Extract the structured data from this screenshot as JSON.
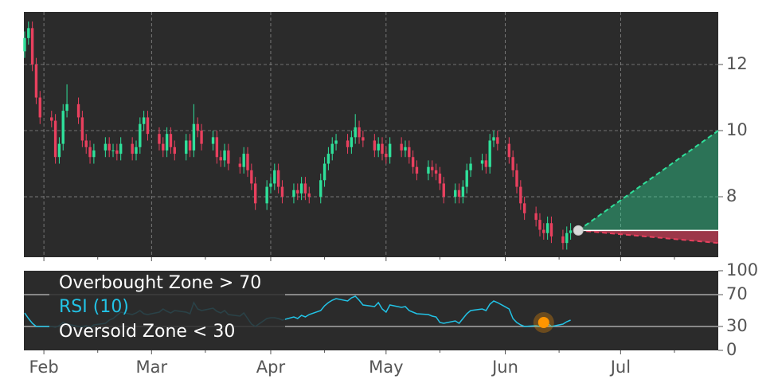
{
  "chart_data": [
    {
      "type": "candlestick",
      "up_color": "#2fe09a",
      "down_color": "#e8405e",
      "background": "#2b2b2b",
      "grid": true,
      "xlim": [
        26.8,
        207.4
      ],
      "ylim": [
        6.17,
        13.59
      ],
      "yticks": [
        8,
        10,
        12
      ],
      "x": [
        27,
        28,
        29,
        30,
        31,
        34,
        35,
        36,
        37,
        38,
        41,
        42,
        43,
        44,
        45,
        48,
        49,
        50,
        51,
        52,
        55,
        56,
        57,
        58,
        59,
        62,
        63,
        64,
        65,
        66,
        69,
        70,
        71,
        72,
        73,
        76,
        77,
        78,
        79,
        80,
        83,
        84,
        85,
        86,
        87,
        90,
        91,
        92,
        93,
        94,
        97,
        98,
        99,
        100,
        101,
        104,
        105,
        106,
        107,
        108,
        111,
        112,
        113,
        114,
        115,
        118,
        119,
        120,
        121,
        122,
        125,
        126,
        127,
        128,
        129,
        132,
        133,
        134,
        135,
        136,
        139,
        140,
        141,
        142,
        143,
        146,
        147,
        148,
        149,
        150,
        153,
        154,
        155,
        156,
        157,
        160,
        161,
        162,
        163,
        164,
        167,
        168,
        169
      ],
      "open": [
        12.4,
        12.8,
        13.1,
        12.0,
        11.0,
        10.4,
        10.3,
        9.2,
        9.6,
        10.6,
        10.8,
        10.4,
        9.7,
        9.5,
        9.2,
        9.4,
        9.6,
        9.4,
        9.4,
        9.3,
        9.6,
        9.3,
        9.5,
        10.2,
        10.4,
        9.9,
        9.6,
        9.4,
        9.9,
        9.5,
        9.3,
        9.7,
        9.4,
        10.2,
        10.0,
        9.6,
        9.8,
        9.2,
        9.1,
        9.4,
        9.0,
        8.9,
        9.3,
        8.8,
        8.4,
        7.8,
        8.3,
        8.4,
        8.8,
        8.3,
        8.0,
        8.2,
        8.1,
        8.4,
        8.1,
        8.0,
        8.5,
        9.0,
        9.3,
        9.6,
        9.7,
        9.5,
        9.8,
        10.1,
        9.8,
        9.7,
        9.4,
        9.6,
        9.3,
        9.2,
        9.6,
        9.4,
        9.5,
        9.2,
        8.9,
        8.7,
        8.9,
        8.8,
        8.7,
        8.4,
        8.0,
        8.2,
        8.0,
        8.3,
        8.8,
        9.0,
        9.1,
        8.9,
        9.7,
        9.8,
        9.6,
        9.2,
        8.8,
        8.3,
        7.8,
        7.5,
        7.3,
        7.0,
        6.9,
        7.2,
        6.8,
        6.6,
        6.9
      ],
      "high": [
        13.0,
        13.3,
        13.3,
        12.2,
        11.2,
        10.6,
        10.5,
        9.8,
        10.8,
        11.4,
        11.0,
        10.6,
        9.9,
        9.7,
        9.6,
        9.8,
        9.8,
        9.6,
        9.6,
        9.8,
        9.8,
        9.7,
        10.4,
        10.6,
        10.6,
        10.1,
        9.8,
        10.1,
        10.1,
        9.7,
        9.9,
        9.9,
        10.8,
        10.4,
        10.2,
        10.0,
        10.0,
        9.4,
        9.6,
        9.6,
        9.2,
        9.5,
        9.5,
        9.0,
        8.6,
        8.5,
        8.6,
        9.0,
        9.0,
        8.5,
        8.4,
        8.4,
        8.6,
        8.6,
        8.3,
        8.7,
        9.2,
        9.5,
        9.8,
        9.9,
        9.9,
        10.0,
        10.5,
        10.3,
        10.0,
        9.9,
        9.8,
        9.8,
        9.5,
        9.8,
        9.8,
        9.7,
        9.7,
        9.4,
        9.1,
        9.1,
        9.1,
        9.0,
        8.9,
        8.6,
        8.4,
        8.4,
        8.5,
        9.0,
        9.2,
        9.3,
        9.3,
        9.9,
        10.0,
        10.0,
        9.8,
        9.4,
        9.0,
        8.5,
        8.0,
        7.7,
        7.5,
        7.2,
        7.4,
        7.4,
        7.0,
        7.1,
        7.2
      ],
      "low": [
        12.2,
        12.6,
        11.8,
        10.8,
        10.2,
        10.1,
        9.0,
        9.0,
        9.4,
        10.4,
        10.2,
        9.5,
        9.3,
        9.0,
        9.0,
        9.2,
        9.2,
        9.2,
        9.1,
        9.1,
        9.1,
        9.1,
        9.3,
        10.0,
        9.7,
        9.4,
        9.2,
        9.2,
        9.3,
        9.1,
        9.1,
        9.2,
        9.2,
        9.8,
        9.4,
        9.4,
        9.0,
        8.9,
        8.9,
        8.8,
        8.7,
        8.7,
        8.6,
        8.2,
        7.6,
        7.6,
        8.1,
        8.2,
        8.1,
        7.8,
        7.8,
        7.9,
        7.9,
        7.9,
        7.8,
        7.8,
        8.3,
        8.8,
        9.1,
        9.4,
        9.3,
        9.3,
        9.6,
        9.6,
        9.5,
        9.2,
        9.2,
        9.1,
        9.0,
        9.0,
        9.2,
        9.2,
        9.0,
        8.7,
        8.5,
        8.5,
        8.6,
        8.5,
        8.2,
        7.8,
        7.8,
        7.8,
        7.8,
        8.1,
        8.6,
        8.8,
        8.7,
        8.7,
        9.5,
        9.4,
        9.0,
        8.6,
        8.1,
        7.6,
        7.3,
        7.1,
        6.8,
        6.7,
        6.7,
        6.6,
        6.4,
        6.4,
        6.7
      ],
      "close": [
        12.8,
        13.1,
        12.0,
        11.0,
        10.4,
        10.3,
        9.2,
        9.6,
        10.6,
        10.8,
        10.4,
        9.7,
        9.5,
        9.2,
        9.4,
        9.6,
        9.4,
        9.4,
        9.3,
        9.6,
        9.3,
        9.5,
        10.2,
        10.4,
        9.9,
        9.6,
        9.4,
        9.9,
        9.5,
        9.3,
        9.7,
        9.4,
        10.2,
        10.0,
        9.6,
        9.8,
        9.2,
        9.1,
        9.4,
        9.0,
        8.9,
        9.3,
        8.8,
        8.4,
        7.8,
        8.3,
        8.4,
        8.8,
        8.3,
        8.0,
        8.2,
        8.1,
        8.4,
        8.1,
        8.0,
        8.5,
        9.0,
        9.3,
        9.6,
        9.7,
        9.5,
        9.8,
        10.1,
        9.8,
        9.7,
        9.4,
        9.6,
        9.3,
        9.2,
        9.6,
        9.4,
        9.5,
        9.2,
        8.9,
        8.7,
        8.9,
        8.8,
        8.7,
        8.4,
        8.0,
        8.2,
        8.0,
        8.3,
        8.8,
        9.0,
        9.1,
        8.9,
        9.7,
        9.8,
        9.6,
        9.2,
        8.8,
        8.3,
        7.8,
        7.5,
        7.3,
        7.0,
        6.9,
        7.2,
        6.8,
        6.6,
        6.9,
        6.98
      ],
      "forecast": {
        "x": [
          171,
          207.4
        ],
        "start": 6.98,
        "upper": 10.0,
        "lower": 6.6,
        "upper_color": "#2fe09a",
        "lower_color": "#e8405e"
      }
    },
    {
      "type": "line",
      "background": "#2b2b2b",
      "xlim": [
        26.8,
        207.4
      ],
      "xticks": [
        {
          "value": 32,
          "label": "Feb"
        },
        {
          "value": 60,
          "label": "Mar"
        },
        {
          "value": 91,
          "label": "Apr"
        },
        {
          "value": 121,
          "label": "May"
        },
        {
          "value": 152,
          "label": "Jun"
        },
        {
          "value": 182,
          "label": "Jul"
        }
      ],
      "xminorticks": [
        46,
        74,
        105,
        135,
        166,
        196
      ],
      "ylim": [
        0,
        100
      ],
      "yticks": [
        0,
        30,
        70,
        100
      ],
      "overbought": 70,
      "oversold": 30,
      "overbought_label": "Overbought Zone > 70",
      "oversold_label": "Oversold Zone < 30",
      "x": [
        27,
        28,
        29,
        30,
        31,
        34,
        35,
        36,
        37,
        38,
        41,
        42,
        43,
        44,
        45,
        48,
        49,
        50,
        51,
        52,
        55,
        56,
        57,
        58,
        59,
        62,
        63,
        64,
        65,
        66,
        69,
        70,
        71,
        72,
        73,
        76,
        77,
        78,
        79,
        80,
        83,
        84,
        85,
        86,
        87,
        90,
        91,
        92,
        93,
        94,
        97,
        98,
        99,
        100,
        101,
        104,
        105,
        106,
        107,
        108,
        111,
        112,
        113,
        114,
        115,
        118,
        119,
        120,
        121,
        122,
        125,
        126,
        127,
        128,
        129,
        132,
        133,
        134,
        135,
        136,
        139,
        140,
        141,
        142,
        143,
        146,
        147,
        148,
        149,
        150,
        153,
        154,
        155,
        156,
        157,
        160,
        161,
        162,
        163,
        164,
        167,
        168,
        169
      ],
      "series": [
        {
          "name": "RSI (10)",
          "color": "#22c3e6",
          "values": [
            47,
            40,
            34,
            30,
            30,
            30,
            29,
            31,
            35,
            33,
            30,
            30,
            31,
            29,
            32,
            34,
            38,
            40,
            44,
            48,
            45,
            47,
            50,
            46,
            45,
            48,
            52,
            49,
            47,
            50,
            48,
            46,
            60,
            52,
            50,
            53,
            49,
            47,
            50,
            45,
            43,
            47,
            40,
            33,
            30,
            40,
            41,
            41,
            40,
            38,
            42,
            40,
            44,
            42,
            45,
            50,
            56,
            60,
            63,
            65,
            62,
            66,
            68,
            63,
            57,
            55,
            60,
            52,
            48,
            57,
            54,
            55,
            50,
            48,
            46,
            45,
            43,
            42,
            35,
            34,
            37,
            34,
            40,
            46,
            50,
            52,
            50,
            58,
            62,
            60,
            52,
            40,
            35,
            32,
            30,
            31,
            30,
            32,
            34,
            30,
            33,
            36,
            38
          ]
        }
      ],
      "signal": {
        "x": 162,
        "value": 35,
        "color": "#ff9500"
      }
    }
  ]
}
